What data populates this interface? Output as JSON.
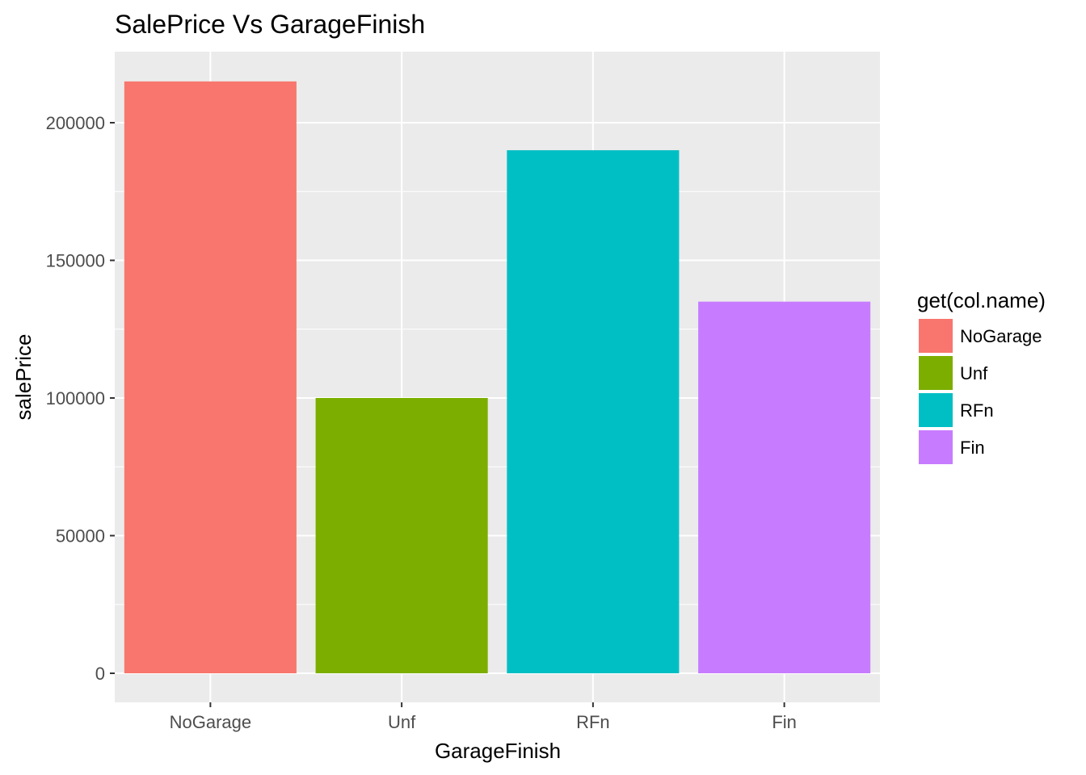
{
  "chart_data": {
    "type": "bar",
    "title": "SalePrice Vs GarageFinish",
    "xlabel": "GarageFinish",
    "ylabel": "salePrice",
    "categories": [
      "NoGarage",
      "Unf",
      "RFn",
      "Fin"
    ],
    "values": [
      215000,
      100000,
      190000,
      135000
    ],
    "colors": [
      "#F8766D",
      "#7CAE00",
      "#00BFC4",
      "#C77CFF"
    ],
    "ylim": [
      0,
      225000
    ],
    "yticks": [
      0,
      50000,
      100000,
      150000,
      200000
    ],
    "ytick_labels": [
      "0",
      "50000",
      "100000",
      "150000",
      "200000"
    ],
    "grid": true,
    "panel_background": "#EBEBEB",
    "legend": {
      "title": "get(col.name)",
      "position": "right",
      "entries": [
        "NoGarage",
        "Unf",
        "RFn",
        "Fin"
      ]
    }
  }
}
